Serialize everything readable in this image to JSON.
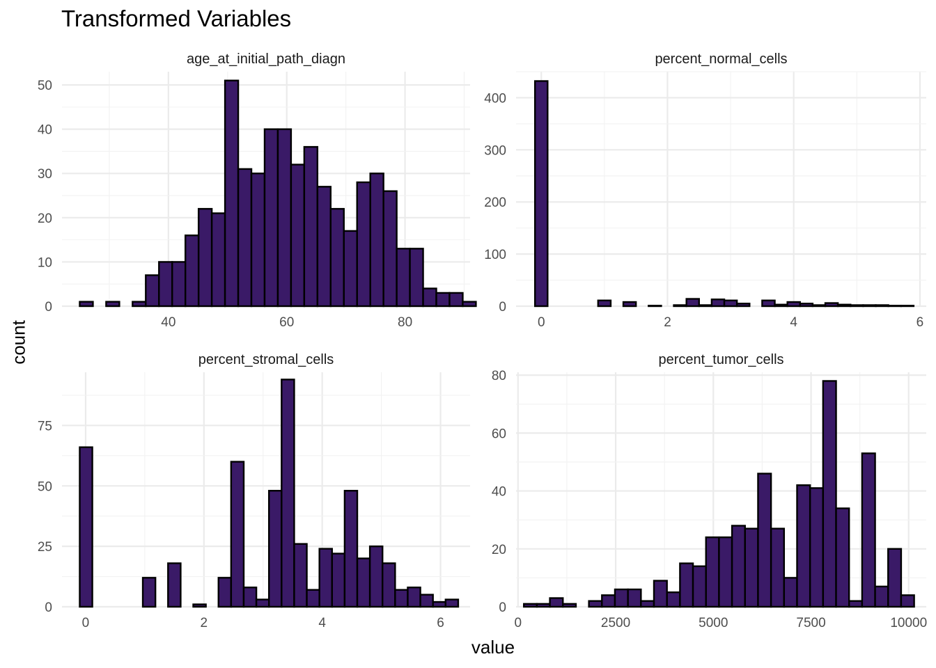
{
  "title": "Transformed Variables",
  "x_axis_title": "value",
  "y_axis_title": "count",
  "bar_fill": "#3a1a67",
  "bar_stroke": "#000000",
  "grid_color": "#ebebeb",
  "chart_data": [
    {
      "type": "bar",
      "title": "age_at_initial_path_diagn",
      "bin_start": 25,
      "bin_width": 2.233,
      "counts": [
        1,
        0,
        1,
        0,
        1,
        7,
        10,
        10,
        16,
        22,
        21,
        51,
        31,
        30,
        40,
        40,
        32,
        36,
        27,
        22,
        17,
        28,
        30,
        26,
        13,
        13,
        4,
        3,
        3,
        1
      ],
      "xlim": [
        22,
        91
      ],
      "ylim": [
        0,
        53
      ],
      "x_ticks": [
        40,
        60,
        80
      ],
      "y_ticks": [
        0,
        10,
        20,
        30,
        40,
        50
      ],
      "grid": true
    },
    {
      "type": "bar",
      "title": "percent_normal_cells",
      "bin_start": -0.1,
      "bin_width": 0.2,
      "counts": [
        432,
        0,
        0,
        0,
        0,
        11,
        0,
        8,
        0,
        1,
        0,
        2,
        14,
        2,
        13,
        11,
        5,
        0,
        11,
        3,
        8,
        5,
        2,
        6,
        3,
        2,
        2,
        2,
        1,
        1
      ],
      "xlim": [
        -0.4,
        6.1
      ],
      "ylim": [
        0,
        450
      ],
      "x_ticks": [
        0,
        2,
        4,
        6
      ],
      "y_ticks": [
        0,
        100,
        200,
        300,
        400
      ],
      "grid": true
    },
    {
      "type": "bar",
      "title": "percent_stromal_cells",
      "bin_start": -0.1,
      "bin_width": 0.2133,
      "counts": [
        66,
        0,
        0,
        0,
        0,
        12,
        0,
        18,
        0,
        1,
        0,
        12,
        60,
        8,
        3,
        48,
        94,
        26,
        7,
        24,
        22,
        48,
        20,
        25,
        18,
        7,
        8,
        5,
        2,
        3
      ],
      "xlim": [
        -0.4,
        6.5
      ],
      "ylim": [
        0,
        97
      ],
      "x_ticks": [
        0,
        2,
        4,
        6
      ],
      "y_ticks": [
        0,
        25,
        50,
        75
      ],
      "grid": true
    },
    {
      "type": "bar",
      "title": "percent_tumor_cells",
      "bin_start": 150,
      "bin_width": 333,
      "counts": [
        1,
        1,
        3,
        1,
        0,
        2,
        4,
        6,
        6,
        2,
        9,
        5,
        15,
        14,
        24,
        24,
        28,
        27,
        46,
        27,
        10,
        42,
        41,
        78,
        34,
        2,
        53,
        7,
        20,
        4
      ],
      "xlim": [
        -50,
        10450
      ],
      "ylim": [
        0,
        81
      ],
      "x_ticks": [
        0,
        2500,
        5000,
        7500,
        10000
      ],
      "y_ticks": [
        0,
        20,
        40,
        60,
        80
      ],
      "grid": true
    }
  ]
}
